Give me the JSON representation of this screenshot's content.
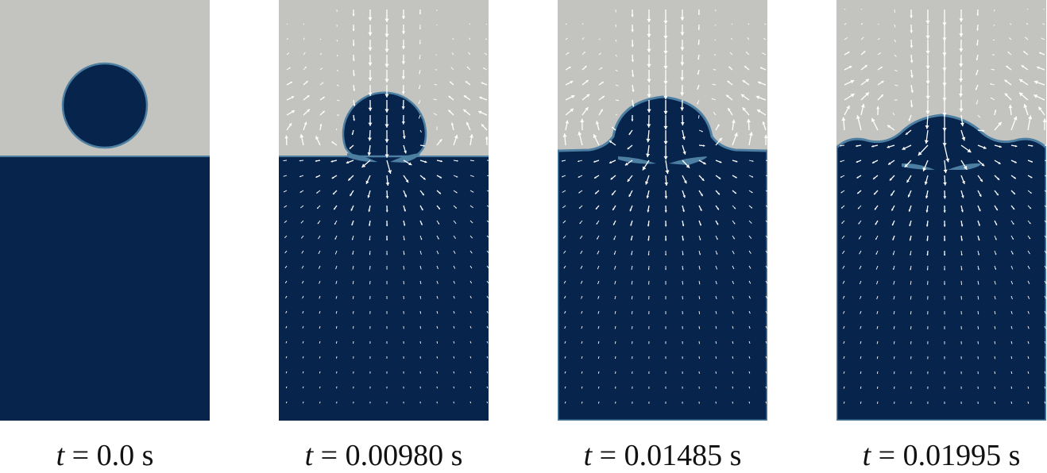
{
  "colors": {
    "air": "#c3c3bf",
    "water": "#06244c",
    "interface": "#4d7fa3",
    "vector": "#ffffff"
  },
  "panels": [
    {
      "time_var": "t",
      "equals": "=",
      "time_value": "0.0",
      "unit": "s",
      "stage": 0
    },
    {
      "time_var": "t",
      "equals": "=",
      "time_value": "0.00980",
      "unit": "s",
      "stage": 1
    },
    {
      "time_var": "t",
      "equals": "=",
      "time_value": "0.01485",
      "unit": "s",
      "stage": 2
    },
    {
      "time_var": "t",
      "equals": "=",
      "time_value": "0.01995",
      "unit": "s",
      "stage": 3
    }
  ]
}
